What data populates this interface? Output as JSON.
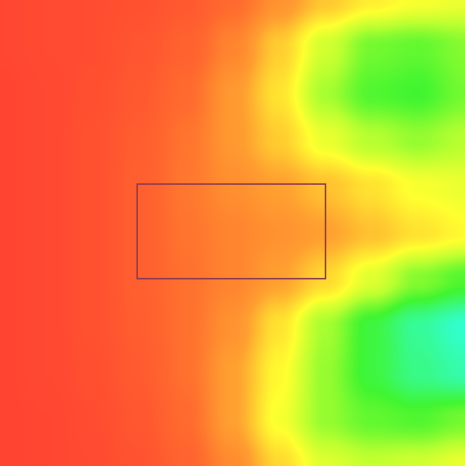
{
  "chart_data": {
    "type": "heatmap",
    "title": "",
    "xlabel": "",
    "ylabel": "",
    "colorscale": [
      "#ff3c32",
      "#ff6a2e",
      "#ffa030",
      "#ffd830",
      "#ffff30",
      "#b8ff30",
      "#40f530",
      "#30ffe0"
    ],
    "colorscale_stops": [
      0.0,
      0.22,
      0.38,
      0.48,
      0.55,
      0.66,
      0.8,
      1.0
    ],
    "columns": 11,
    "rows": 11,
    "values": [
      [
        0.05,
        0.07,
        0.08,
        0.1,
        0.14,
        0.22,
        0.34,
        0.45,
        0.52,
        0.56,
        0.58
      ],
      [
        0.05,
        0.07,
        0.08,
        0.12,
        0.18,
        0.3,
        0.46,
        0.62,
        0.74,
        0.76,
        0.72
      ],
      [
        0.04,
        0.06,
        0.09,
        0.14,
        0.22,
        0.36,
        0.5,
        0.68,
        0.78,
        0.8,
        0.74
      ],
      [
        0.04,
        0.06,
        0.1,
        0.16,
        0.25,
        0.36,
        0.46,
        0.58,
        0.66,
        0.7,
        0.66
      ],
      [
        0.04,
        0.06,
        0.1,
        0.17,
        0.26,
        0.33,
        0.38,
        0.44,
        0.5,
        0.56,
        0.58
      ],
      [
        0.04,
        0.06,
        0.1,
        0.17,
        0.25,
        0.3,
        0.34,
        0.38,
        0.44,
        0.5,
        0.54
      ],
      [
        0.04,
        0.06,
        0.1,
        0.17,
        0.24,
        0.3,
        0.38,
        0.48,
        0.6,
        0.72,
        0.78
      ],
      [
        0.04,
        0.06,
        0.1,
        0.16,
        0.24,
        0.34,
        0.5,
        0.68,
        0.82,
        0.92,
        0.98
      ],
      [
        0.04,
        0.06,
        0.09,
        0.15,
        0.24,
        0.38,
        0.54,
        0.7,
        0.82,
        0.9,
        0.94
      ],
      [
        0.04,
        0.05,
        0.08,
        0.13,
        0.22,
        0.38,
        0.56,
        0.7,
        0.76,
        0.78,
        0.74
      ],
      [
        0.04,
        0.05,
        0.07,
        0.11,
        0.19,
        0.32,
        0.48,
        0.6,
        0.64,
        0.62,
        0.58
      ]
    ],
    "selection": {
      "x_range": [
        0.295,
        0.7
      ],
      "y_range": [
        0.395,
        0.598
      ],
      "color": "#8a3a50"
    },
    "grid": false,
    "legend": "none"
  }
}
